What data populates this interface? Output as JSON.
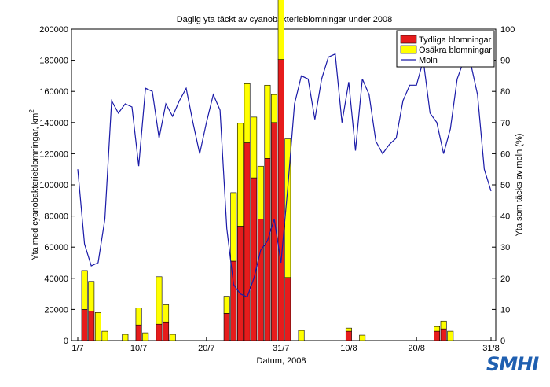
{
  "chart_data": {
    "type": "bar",
    "title": "Daglig yta täckt av cyanobakterieblomningar under 2008",
    "xlabel": "Datum, 2008",
    "ylabel_left": "Yta med cyanobakterieblomningar, km²",
    "ylabel_left_base": "Yta med cyanobakterieblomningar, km",
    "ylabel_left_sup": "2",
    "ylabel_right": "Yta som täcks av moln (%)",
    "ylim_left": [
      0,
      200000
    ],
    "ylim_right": [
      0,
      100
    ],
    "yticks_left": [
      "0",
      "20000",
      "40000",
      "60000",
      "80000",
      "100000",
      "120000",
      "140000",
      "160000",
      "180000",
      "200000"
    ],
    "yticks_right": [
      "0",
      "10",
      "20",
      "30",
      "40",
      "50",
      "60",
      "70",
      "80",
      "90",
      "100"
    ],
    "xticks": [
      {
        "day": 1,
        "label": "1/7"
      },
      {
        "day": 10,
        "label": "10/7"
      },
      {
        "day": 20,
        "label": "20/7"
      },
      {
        "day": 31,
        "label": "31/7"
      },
      {
        "day": 41,
        "label": "10/8"
      },
      {
        "day": 51,
        "label": "20/8"
      },
      {
        "day": 62,
        "label": "31/8"
      }
    ],
    "x_domain": [
      1,
      62
    ],
    "legend": {
      "placement": "top-right",
      "entries": [
        "Tydliga blomningar",
        "Osäkra blomningar",
        "Moln"
      ]
    },
    "colors": {
      "clear": "#e61c1c",
      "uncertain": "#ffff00",
      "cloud": "#1a1aa8"
    },
    "bars": [
      {
        "day": 2,
        "clear": 20000,
        "uncertain": 25000
      },
      {
        "day": 3,
        "clear": 19000,
        "uncertain": 19000
      },
      {
        "day": 4,
        "clear": 0,
        "uncertain": 18000
      },
      {
        "day": 5,
        "clear": 0,
        "uncertain": 6000
      },
      {
        "day": 8,
        "clear": 0,
        "uncertain": 4000
      },
      {
        "day": 10,
        "clear": 10000,
        "uncertain": 11000
      },
      {
        "day": 11,
        "clear": 0,
        "uncertain": 5000
      },
      {
        "day": 13,
        "clear": 10500,
        "uncertain": 30500
      },
      {
        "day": 14,
        "clear": 12000,
        "uncertain": 11000
      },
      {
        "day": 15,
        "clear": 0,
        "uncertain": 4000
      },
      {
        "day": 23,
        "clear": 17500,
        "uncertain": 11000
      },
      {
        "day": 24,
        "clear": 51000,
        "uncertain": 44000
      },
      {
        "day": 25,
        "clear": 73500,
        "uncertain": 66000
      },
      {
        "day": 26,
        "clear": 127000,
        "uncertain": 38000
      },
      {
        "day": 27,
        "clear": 104500,
        "uncertain": 39000
      },
      {
        "day": 28,
        "clear": 78000,
        "uncertain": 34000
      },
      {
        "day": 29,
        "clear": 117000,
        "uncertain": 47000
      },
      {
        "day": 30,
        "clear": 140000,
        "uncertain": 18000
      },
      {
        "day": 31,
        "clear": 180500,
        "uncertain": 46500
      },
      {
        "day": 32,
        "clear": 40500,
        "uncertain": 89000
      },
      {
        "day": 34,
        "clear": 0,
        "uncertain": 6500
      },
      {
        "day": 41,
        "clear": 6000,
        "uncertain": 2000
      },
      {
        "day": 43,
        "clear": 0,
        "uncertain": 3500
      },
      {
        "day": 54,
        "clear": 6000,
        "uncertain": 3000
      },
      {
        "day": 55,
        "clear": 7500,
        "uncertain": 5000
      },
      {
        "day": 56,
        "clear": 0,
        "uncertain": 6000
      }
    ],
    "cloud_series": {
      "name": "Moln",
      "days": [
        1,
        2,
        3,
        4,
        5,
        6,
        7,
        8,
        9,
        10,
        11,
        12,
        13,
        14,
        15,
        16,
        17,
        18,
        19,
        20,
        21,
        22,
        23,
        24,
        25,
        26,
        27,
        28,
        29,
        30,
        31,
        32,
        33,
        34,
        35,
        36,
        37,
        38,
        39,
        40,
        41,
        42,
        43,
        44,
        45,
        46,
        47,
        48,
        49,
        50,
        51,
        52,
        53,
        54,
        55,
        56,
        57,
        58,
        59,
        60,
        61,
        62
      ],
      "values": [
        55,
        31,
        24,
        25,
        39,
        77,
        73,
        76,
        75,
        56,
        81,
        80,
        65,
        76,
        72,
        77,
        81,
        70,
        60,
        70,
        79,
        74,
        36,
        18,
        15,
        14,
        20,
        29,
        32,
        39,
        25,
        49,
        76,
        85,
        84,
        71,
        84,
        91,
        92,
        70,
        83,
        61,
        84,
        79,
        64,
        60,
        63,
        65,
        77,
        82,
        82,
        90,
        73,
        70,
        60,
        68,
        84,
        90,
        89,
        79,
        55,
        48
      ]
    }
  },
  "logo": {
    "text": "SMHI"
  }
}
